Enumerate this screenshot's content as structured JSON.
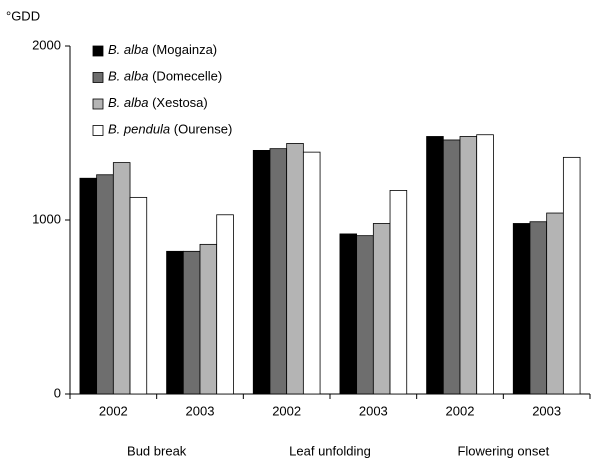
{
  "chart_data": {
    "type": "bar",
    "y_label": "°GDD",
    "categories": [
      "2002",
      "2003",
      "2002",
      "2003",
      "2002",
      "2003"
    ],
    "groups": [
      "Bud break",
      "Leaf unfolding",
      "Flowering onset"
    ],
    "series": [
      {
        "name": "B. alba (Mogainza)",
        "color": "#000000",
        "values": [
          1240,
          820,
          1400,
          920,
          1480,
          980
        ]
      },
      {
        "name": "B. alba (Domecelle)",
        "color": "#6e6e6e",
        "values": [
          1260,
          820,
          1410,
          910,
          1460,
          990
        ]
      },
      {
        "name": "B. alba (Xestosa)",
        "color": "#b4b4b4",
        "values": [
          1330,
          860,
          1440,
          980,
          1480,
          1040
        ]
      },
      {
        "name": "B. pendula (Ourense)",
        "color": "#ffffff",
        "values": [
          1130,
          1030,
          1390,
          1170,
          1490,
          1360
        ]
      }
    ],
    "ylim": [
      0,
      2000
    ],
    "yticks": [
      0,
      1000,
      2000
    ],
    "grid": false,
    "legend": "top-left"
  }
}
